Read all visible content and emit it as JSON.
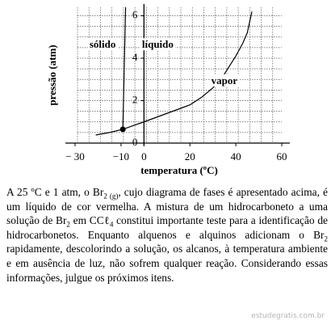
{
  "chart_data": {
    "type": "line",
    "xlabel": "temperatura (ºC)",
    "ylabel": "pressão (atm)",
    "xlim": [
      -30,
      60
    ],
    "ylim": [
      0,
      6.4
    ],
    "xticks": [
      {
        "value": -30,
        "label": "− 30"
      },
      {
        "value": -10,
        "label": "−10"
      },
      0,
      20,
      40,
      60
    ],
    "yticks": [
      0,
      2,
      4,
      6
    ],
    "grid": true,
    "color": "#000",
    "series": [
      {
        "x": [
          -21,
          -15,
          -9.2,
          -4,
          0,
          5,
          10,
          15,
          20,
          25,
          30,
          35,
          40,
          43,
          45,
          47
        ],
        "values": [
          0.38,
          0.5,
          0.65,
          0.85,
          1.0,
          1.2,
          1.4,
          1.6,
          1.8,
          2.15,
          2.6,
          3.25,
          4.1,
          4.7,
          5.2,
          6.2
        ]
      },
      {
        "x": [
          -9.2,
          -8
        ],
        "values": [
          0.65,
          6.4
        ]
      }
    ],
    "marker": {
      "x": -9.2,
      "value": 0.65
    },
    "annotations": [
      {
        "text": "sólido",
        "x": -18,
        "y": 4.6
      },
      {
        "text": "líquido",
        "x": 6,
        "y": 4.6
      },
      {
        "text": "vapor",
        "x": 35,
        "y": 2.9
      }
    ]
  },
  "paragraph": [
    "A 25 ºC e 1 atm, o Br",
    {
      "sub": "2 (g)"
    },
    ", cujo diagrama de fases é apresentado acima, é um líquido de cor vermelha. A mistura de um hidrocarboneto a uma solução de Br",
    {
      "sub": "2"
    },
    " em CCℓ",
    {
      "sub": "4"
    },
    " constitui importante teste para a identificação de hidrocarbonetos. Enquanto alquenos e alquinos adicionam o Br",
    {
      "sub": "2"
    },
    " rapidamente, descolorindo a solução, os alcanos, à temperatura ambiente e em ausência de luz, não sofrem qualquer reação. Considerando essas informações, julgue os próximos itens."
  ],
  "watermark": "estudegratis.com.br"
}
